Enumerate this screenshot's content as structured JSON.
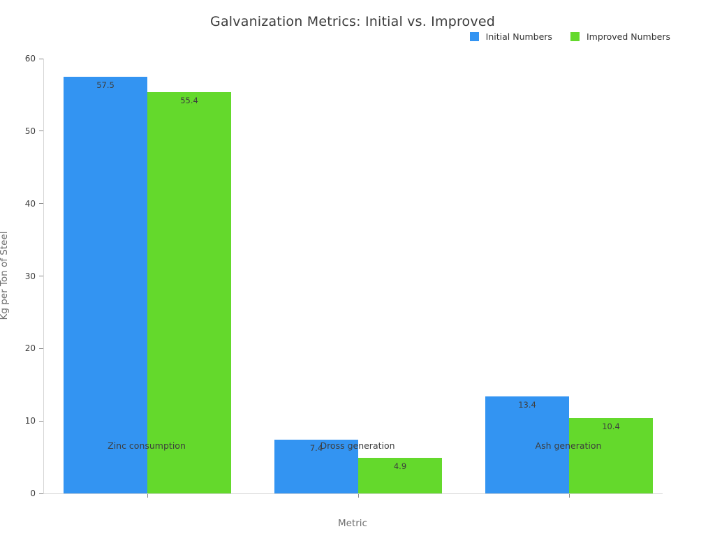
{
  "figure": {
    "background": "#ffffff"
  },
  "chart_data": {
    "type": "bar",
    "title": "Galvanization Metrics: Initial vs. Improved",
    "categories": [
      "Zinc consumption",
      "Dross generation",
      "Ash generation"
    ],
    "series": [
      {
        "name": "Initial Numbers",
        "color": "#3394f2",
        "values": [
          57.5,
          7.4,
          13.4
        ],
        "value_labels": [
          "57.5",
          "7.4",
          "13.4"
        ]
      },
      {
        "name": "Improved Numbers",
        "color": "#64d92c",
        "values": [
          55.4,
          4.9,
          10.4
        ],
        "value_labels": [
          "55.4",
          "4.9",
          "10.4"
        ]
      }
    ],
    "xlabel": "Metric",
    "ylabel": "Kg per Ton of Steel",
    "ylim": [
      0,
      60
    ],
    "yticks": [
      0,
      10,
      20,
      30,
      40,
      50,
      60
    ],
    "grid": false,
    "legend_position": "top-right",
    "bar_labels_inside": true,
    "colors": {
      "title": "#3c3c3c",
      "tick_label": "#3d3d3d",
      "axis_label": "#6e6e6e",
      "axis_line": "#d6d6d6"
    }
  }
}
